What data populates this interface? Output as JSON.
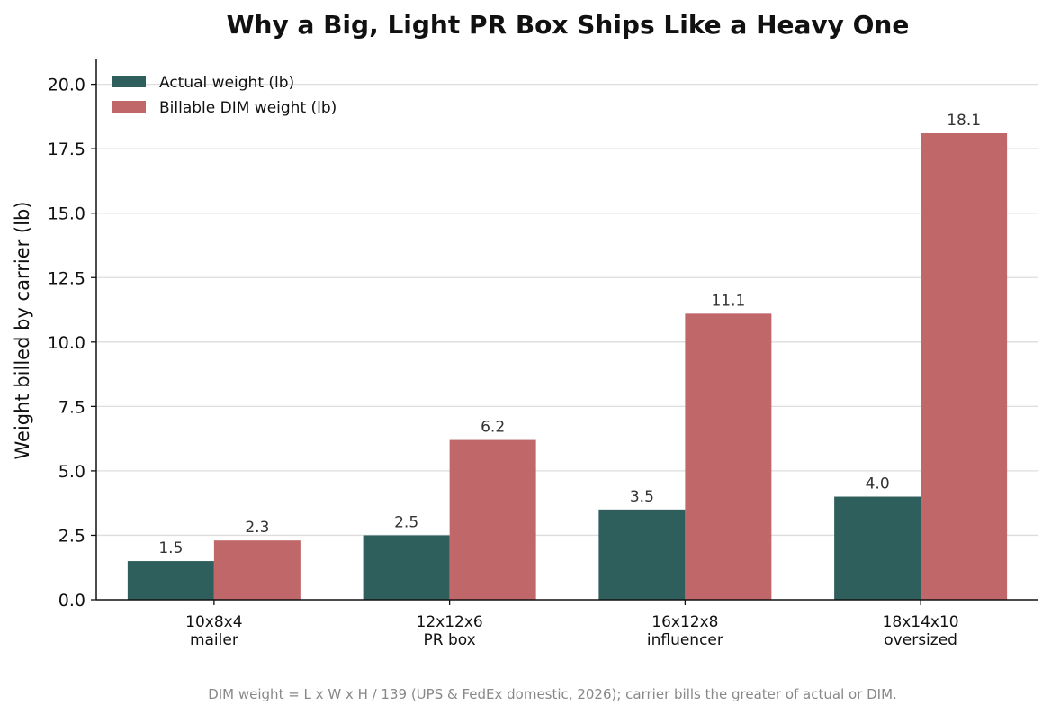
{
  "chart_data": {
    "type": "bar",
    "title": "Why a Big, Light PR Box Ships Like a Heavy One",
    "xlabel": "",
    "ylabel": "Weight billed by carrier (lb)",
    "ylim": [
      0,
      21
    ],
    "yticks": [
      0,
      2.5,
      5,
      7.5,
      10,
      12.5,
      15,
      17.5,
      20
    ],
    "ytick_labels": [
      "0.0",
      "2.5",
      "5.0",
      "7.5",
      "10.0",
      "12.5",
      "15.0",
      "17.5",
      "20.0"
    ],
    "grid": "horizontal",
    "legend_position": "top-left",
    "categories": [
      [
        "10x8x4",
        "mailer"
      ],
      [
        "12x12x6",
        "PR box"
      ],
      [
        "16x12x8",
        "influencer"
      ],
      [
        "18x14x10",
        "oversized"
      ]
    ],
    "series": [
      {
        "name": "Actual weight (lb)",
        "color": "#2e5f5c",
        "values": [
          1.5,
          2.5,
          3.5,
          4.0
        ],
        "labels": [
          "1.5",
          "2.5",
          "3.5",
          "4.0"
        ]
      },
      {
        "name": "Billable DIM weight (lb)",
        "color": "#c0676a",
        "values": [
          2.3,
          6.2,
          11.1,
          18.1
        ],
        "labels": [
          "2.3",
          "6.2",
          "11.1",
          "18.1"
        ]
      }
    ],
    "footnote": "DIM weight = L x W x H / 139 (UPS & FedEx domestic, 2026); carrier bills the greater of actual or DIM."
  }
}
